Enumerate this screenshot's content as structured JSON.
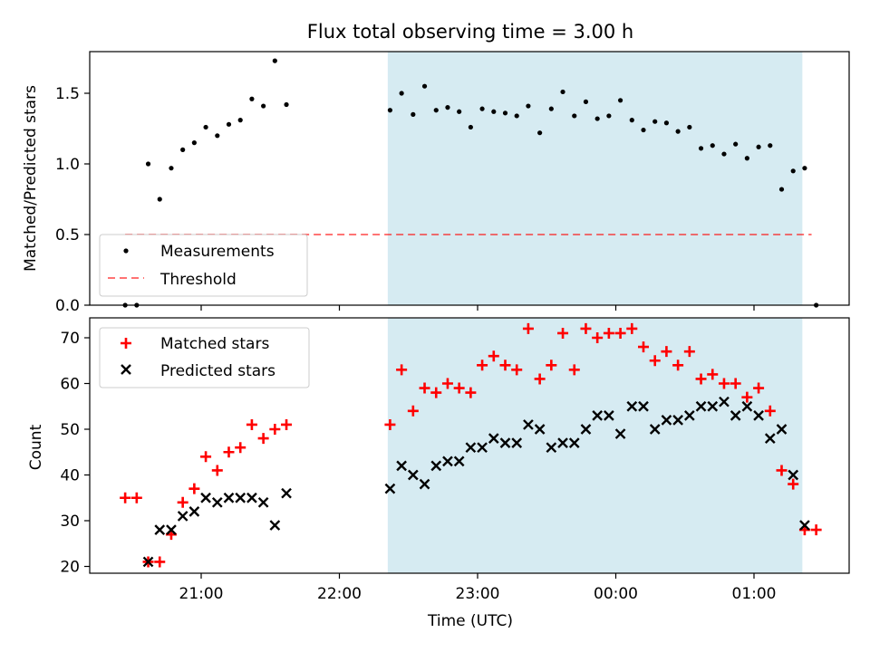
{
  "figure": {
    "title": "Flux total observing time = 3.00 h"
  },
  "colors": {
    "shade": "#add8e6",
    "measurement": "#000000",
    "threshold": "#ff0000",
    "matched": "#ff0000",
    "predicted": "#000000"
  },
  "chart_data": [
    {
      "type": "scatter",
      "ylabel": "Matched/Predicted stars",
      "ylim": [
        0,
        1.8
      ],
      "yticks": [
        0.0,
        0.5,
        1.0,
        1.5
      ],
      "ytick_labels": [
        "0.0",
        "0.5",
        "1.0",
        "1.5"
      ],
      "x_axis": "time (UTC), shared with lower panel",
      "shaded_span": [
        "22:21",
        "01:21"
      ],
      "legend": "lower-left",
      "series": [
        {
          "name": "Measurements",
          "marker": "dot",
          "points": [
            [
              "20:27",
              0.0
            ],
            [
              "20:32",
              0.0
            ],
            [
              "20:37",
              1.0
            ],
            [
              "20:42",
              0.75
            ],
            [
              "20:47",
              0.97
            ],
            [
              "20:52",
              1.1
            ],
            [
              "20:57",
              1.15
            ],
            [
              "21:02",
              1.26
            ],
            [
              "21:07",
              1.2
            ],
            [
              "21:12",
              1.28
            ],
            [
              "21:17",
              1.31
            ],
            [
              "21:22",
              1.46
            ],
            [
              "21:27",
              1.41
            ],
            [
              "21:32",
              1.73
            ],
            [
              "21:37",
              1.42
            ],
            [
              "22:22",
              1.38
            ],
            [
              "22:27",
              1.5
            ],
            [
              "22:32",
              1.35
            ],
            [
              "22:37",
              1.55
            ],
            [
              "22:42",
              1.38
            ],
            [
              "22:47",
              1.4
            ],
            [
              "22:52",
              1.37
            ],
            [
              "22:57",
              1.26
            ],
            [
              "23:02",
              1.39
            ],
            [
              "23:07",
              1.37
            ],
            [
              "23:12",
              1.36
            ],
            [
              "23:17",
              1.34
            ],
            [
              "23:22",
              1.41
            ],
            [
              "23:27",
              1.22
            ],
            [
              "23:32",
              1.39
            ],
            [
              "23:37",
              1.51
            ],
            [
              "23:42",
              1.34
            ],
            [
              "23:47",
              1.44
            ],
            [
              "23:52",
              1.32
            ],
            [
              "23:57",
              1.34
            ],
            [
              "00:02",
              1.45
            ],
            [
              "00:07",
              1.31
            ],
            [
              "00:12",
              1.24
            ],
            [
              "00:17",
              1.3
            ],
            [
              "00:22",
              1.29
            ],
            [
              "00:27",
              1.23
            ],
            [
              "00:32",
              1.26
            ],
            [
              "00:37",
              1.11
            ],
            [
              "00:42",
              1.13
            ],
            [
              "00:47",
              1.07
            ],
            [
              "00:52",
              1.14
            ],
            [
              "00:57",
              1.04
            ],
            [
              "01:02",
              1.12
            ],
            [
              "01:07",
              1.13
            ],
            [
              "01:12",
              0.82
            ],
            [
              "01:17",
              0.95
            ],
            [
              "01:22",
              0.97
            ],
            [
              "01:27",
              0.0
            ]
          ]
        },
        {
          "name": "Threshold",
          "style": "dashed",
          "y": 0.5,
          "x_range": [
            "20:27",
            "01:25"
          ]
        }
      ]
    },
    {
      "type": "scatter",
      "xlabel": "Time (UTC)",
      "ylabel": "Count",
      "ylim": [
        19,
        75
      ],
      "yticks": [
        20,
        30,
        40,
        50,
        60,
        70
      ],
      "ytick_labels": [
        "20",
        "30",
        "40",
        "50",
        "60",
        "70"
      ],
      "xticks": [
        "21:00",
        "22:00",
        "23:00",
        "00:00",
        "01:00"
      ],
      "xtick_labels": [
        "21:00",
        "22:00",
        "23:00",
        "00:00",
        "01:00"
      ],
      "shaded_span": [
        "22:21",
        "01:21"
      ],
      "legend": "top-left",
      "series": [
        {
          "name": "Matched stars",
          "marker": "plus",
          "points": [
            [
              "20:27",
              35
            ],
            [
              "20:32",
              35
            ],
            [
              "20:37",
              21
            ],
            [
              "20:42",
              21
            ],
            [
              "20:47",
              27
            ],
            [
              "20:52",
              34
            ],
            [
              "20:57",
              37
            ],
            [
              "21:02",
              44
            ],
            [
              "21:07",
              41
            ],
            [
              "21:12",
              45
            ],
            [
              "21:17",
              46
            ],
            [
              "21:22",
              51
            ],
            [
              "21:27",
              48
            ],
            [
              "21:32",
              50
            ],
            [
              "21:37",
              51
            ],
            [
              "22:22",
              51
            ],
            [
              "22:27",
              63
            ],
            [
              "22:32",
              54
            ],
            [
              "22:37",
              59
            ],
            [
              "22:42",
              58
            ],
            [
              "22:47",
              60
            ],
            [
              "22:52",
              59
            ],
            [
              "22:57",
              58
            ],
            [
              "23:02",
              64
            ],
            [
              "23:07",
              66
            ],
            [
              "23:12",
              64
            ],
            [
              "23:17",
              63
            ],
            [
              "23:22",
              72
            ],
            [
              "23:27",
              61
            ],
            [
              "23:32",
              64
            ],
            [
              "23:37",
              71
            ],
            [
              "23:42",
              63
            ],
            [
              "23:47",
              72
            ],
            [
              "23:52",
              70
            ],
            [
              "23:57",
              71
            ],
            [
              "00:02",
              71
            ],
            [
              "00:07",
              72
            ],
            [
              "00:12",
              68
            ],
            [
              "00:17",
              65
            ],
            [
              "00:22",
              67
            ],
            [
              "00:27",
              64
            ],
            [
              "00:32",
              67
            ],
            [
              "00:37",
              61
            ],
            [
              "00:42",
              62
            ],
            [
              "00:47",
              60
            ],
            [
              "00:52",
              60
            ],
            [
              "00:57",
              57
            ],
            [
              "01:02",
              59
            ],
            [
              "01:07",
              54
            ],
            [
              "01:12",
              41
            ],
            [
              "01:17",
              38
            ],
            [
              "01:22",
              28
            ],
            [
              "01:27",
              28
            ]
          ]
        },
        {
          "name": "Predicted stars",
          "marker": "x",
          "points": [
            [
              "20:37",
              21
            ],
            [
              "20:42",
              28
            ],
            [
              "20:47",
              28
            ],
            [
              "20:52",
              31
            ],
            [
              "20:57",
              32
            ],
            [
              "21:02",
              35
            ],
            [
              "21:07",
              34
            ],
            [
              "21:12",
              35
            ],
            [
              "21:17",
              35
            ],
            [
              "21:22",
              35
            ],
            [
              "21:27",
              34
            ],
            [
              "21:32",
              29
            ],
            [
              "21:37",
              36
            ],
            [
              "22:22",
              37
            ],
            [
              "22:27",
              42
            ],
            [
              "22:32",
              40
            ],
            [
              "22:37",
              38
            ],
            [
              "22:42",
              42
            ],
            [
              "22:47",
              43
            ],
            [
              "22:52",
              43
            ],
            [
              "22:57",
              46
            ],
            [
              "23:02",
              46
            ],
            [
              "23:07",
              48
            ],
            [
              "23:12",
              47
            ],
            [
              "23:17",
              47
            ],
            [
              "23:22",
              51
            ],
            [
              "23:27",
              50
            ],
            [
              "23:32",
              46
            ],
            [
              "23:37",
              47
            ],
            [
              "23:42",
              47
            ],
            [
              "23:47",
              50
            ],
            [
              "23:52",
              53
            ],
            [
              "23:57",
              53
            ],
            [
              "00:02",
              49
            ],
            [
              "00:07",
              55
            ],
            [
              "00:12",
              55
            ],
            [
              "00:17",
              50
            ],
            [
              "00:22",
              52
            ],
            [
              "00:27",
              52
            ],
            [
              "00:32",
              53
            ],
            [
              "00:37",
              55
            ],
            [
              "00:42",
              55
            ],
            [
              "00:47",
              56
            ],
            [
              "00:52",
              53
            ],
            [
              "00:57",
              55
            ],
            [
              "01:02",
              53
            ],
            [
              "01:07",
              48
            ],
            [
              "01:12",
              50
            ],
            [
              "01:17",
              40
            ],
            [
              "01:22",
              29
            ]
          ]
        }
      ]
    }
  ]
}
